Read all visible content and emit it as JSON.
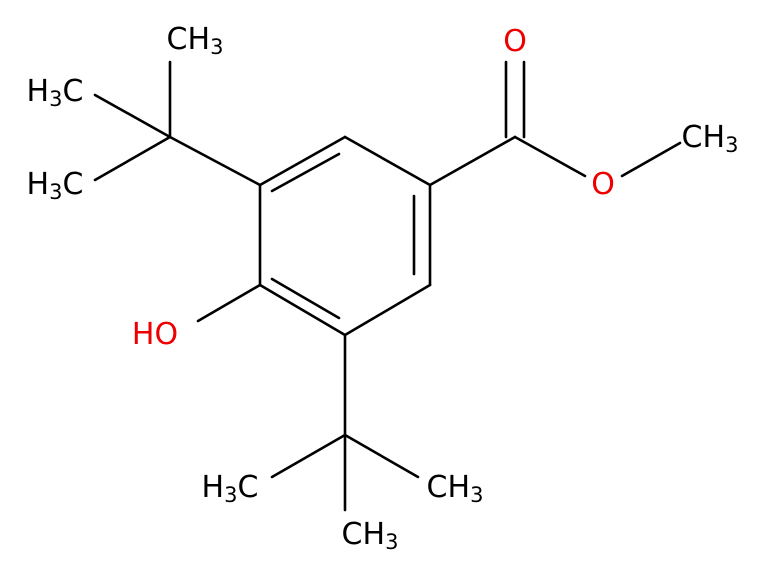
{
  "atoms": [
    {
      "label": "CH3"
    },
    {
      "label": "H3C"
    },
    {
      "label": "H3C"
    },
    {
      "label": "O"
    },
    {
      "label": "CH3"
    },
    {
      "label": "O"
    },
    {
      "label": "HO"
    },
    {
      "label": "H3C"
    },
    {
      "label": "CH3"
    },
    {
      "label": "CH3"
    }
  ]
}
